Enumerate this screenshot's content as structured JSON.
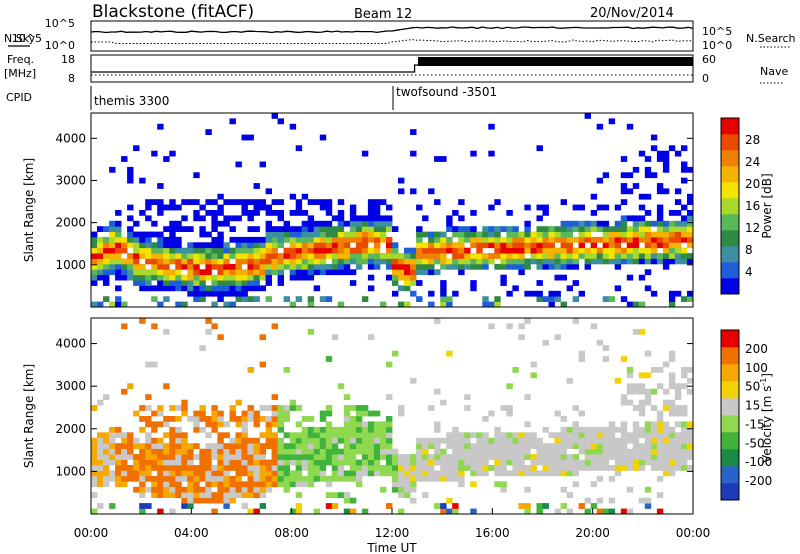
{
  "header": {
    "station": "Blackstone (fitACF)",
    "beam": "Beam 12",
    "date": "20/Nov/2014"
  },
  "top_panel": {
    "left_labels": {
      "nsky": "N.Sky",
      "freq": "Freq.",
      "freq_unit": "[MHz]",
      "cpid": "CPID"
    },
    "right_labels": {
      "nsearch": "N.Search",
      "nave": "Nave"
    },
    "noise_ticks": [
      "10^5",
      "10^0"
    ],
    "freq_ticks": [
      "18",
      "8"
    ],
    "nave_ticks": [
      "60",
      "0"
    ],
    "cpid_segments": [
      {
        "name": "themis 3300",
        "start_hour": 0,
        "end_hour": 12.1
      },
      {
        "name": "twofsound -3501",
        "start_hour": 12.1,
        "end_hour": 24
      }
    ]
  },
  "chart_data": [
    {
      "type": "heatmap",
      "name": "power",
      "ylabel": "Slant Range [km]",
      "yticks": [
        "4000",
        "3000",
        "2000",
        "1000"
      ],
      "ylim": [
        0,
        4600
      ],
      "xlim": [
        0,
        24
      ],
      "colorbar": {
        "label": "Power [dB]",
        "ticks": [
          "28",
          "24",
          "20",
          "16",
          "12",
          "8",
          "4"
        ],
        "colors": [
          "#0000e6",
          "#1e5fd8",
          "#3c8fa0",
          "#2f8a46",
          "#5ab85a",
          "#a8d82a",
          "#f2e300",
          "#f6b200",
          "#f08000",
          "#ea4a00",
          "#e60000"
        ]
      }
    },
    {
      "type": "heatmap",
      "name": "velocity",
      "ylabel": "Slant Range [km]",
      "yticks": [
        "4000",
        "3000",
        "2000",
        "1000"
      ],
      "ylim": [
        0,
        4600
      ],
      "xlim": [
        0,
        24
      ],
      "xlabel": "Time UT",
      "xticks": [
        "00:00",
        "04:00",
        "08:00",
        "12:00",
        "16:00",
        "20:00",
        "00:00"
      ],
      "colorbar": {
        "label": "Velocity [m s",
        "label_sup": "-1",
        "label_end": "]",
        "ticks": [
          "200",
          "100",
          "50",
          "15",
          "-15",
          "-50",
          "-100",
          "-200"
        ],
        "colors": [
          "#1f3ab8",
          "#2a63c8",
          "#1a8a46",
          "#3fb33c",
          "#8fd850",
          "#c8c8c8",
          "#f2d300",
          "#f7a800",
          "#f07000",
          "#e60000"
        ]
      }
    }
  ]
}
